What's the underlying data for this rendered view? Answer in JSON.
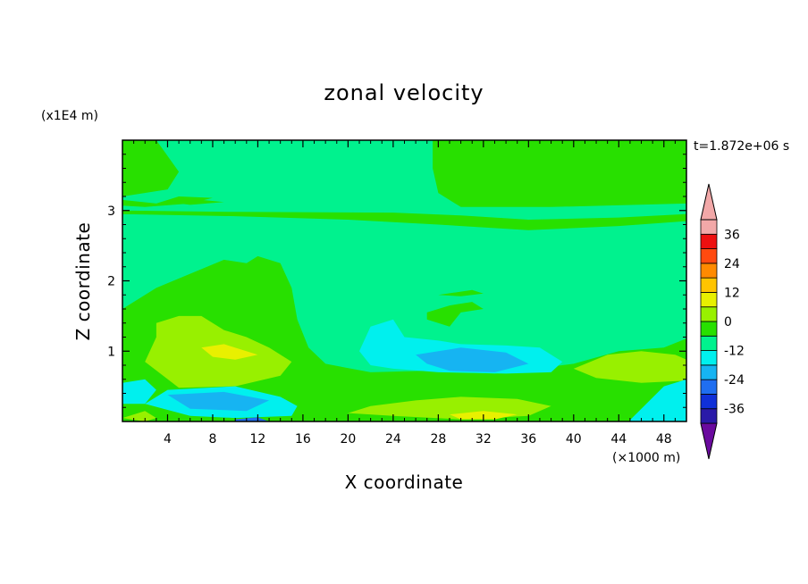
{
  "chart_data": {
    "type": "heatmap",
    "title": "zonal velocity",
    "xlabel": "X coordinate",
    "ylabel": "Z coordinate",
    "x_scale_label": "(×1000 m)",
    "y_scale_label": "(x1E4 m)",
    "time_label": "t=1.872e+06 s",
    "xlim": [
      0,
      50
    ],
    "ylim": [
      0,
      4
    ],
    "x_ticks": [
      4,
      8,
      12,
      16,
      20,
      24,
      28,
      32,
      36,
      40,
      44,
      48
    ],
    "x_tick_labels": [
      "4",
      "8",
      "12",
      "16",
      "20",
      "24",
      "28",
      "32",
      "36",
      "40",
      "44",
      "48"
    ],
    "y_ticks": [
      1,
      2,
      3
    ],
    "y_tick_labels": [
      "1",
      "2",
      "3"
    ],
    "colorbar": {
      "levels": [
        -42,
        -36,
        -30,
        -24,
        -18,
        -12,
        -6,
        0,
        6,
        12,
        18,
        24,
        30,
        36,
        42
      ],
      "tick_values": [
        36,
        24,
        12,
        0,
        -12,
        -24,
        -36
      ],
      "tick_labels": [
        "36",
        "24",
        "12",
        "0",
        "-12",
        "-24",
        "-36"
      ],
      "colors": [
        "#6a0a9e",
        "#2a1aa8",
        "#1030d8",
        "#1f6ef0",
        "#16b4f2",
        "#00f0ee",
        "#00f28e",
        "#28e000",
        "#98f000",
        "#e8f000",
        "#ffc400",
        "#ff8a00",
        "#ff4a10",
        "#ee1010",
        "#f2a8a8"
      ]
    },
    "background_color": "#00f28e",
    "regions": [
      {
        "level": 0,
        "polygon": [
          [
            0,
            4
          ],
          [
            3,
            4
          ],
          [
            5,
            3.55
          ],
          [
            4,
            3.3
          ],
          [
            0,
            3.2
          ]
        ]
      },
      {
        "level": 0,
        "polygon": [
          [
            27.5,
            4
          ],
          [
            50,
            4
          ],
          [
            50,
            3.1
          ],
          [
            38,
            3.05
          ],
          [
            30,
            3.05
          ],
          [
            28,
            3.25
          ],
          [
            27.5,
            3.6
          ]
        ]
      },
      {
        "level": 0,
        "polygon": [
          [
            0,
            3.0
          ],
          [
            10,
            2.98
          ],
          [
            24,
            2.97
          ],
          [
            30,
            2.93
          ],
          [
            36,
            2.87
          ],
          [
            44,
            2.9
          ],
          [
            50,
            2.95
          ],
          [
            50,
            2.85
          ],
          [
            44,
            2.78
          ],
          [
            36,
            2.72
          ],
          [
            28,
            2.8
          ],
          [
            20,
            2.87
          ],
          [
            10,
            2.92
          ],
          [
            0,
            2.95
          ]
        ]
      },
      {
        "level": 0,
        "polygon": [
          [
            0,
            3.15
          ],
          [
            3,
            3.1
          ],
          [
            5,
            3.2
          ],
          [
            8,
            3.18
          ],
          [
            6,
            3.1
          ],
          [
            2,
            3.05
          ],
          [
            0,
            3.07
          ]
        ]
      },
      {
        "level": 0,
        "polygon": [
          [
            4,
            3.12
          ],
          [
            7,
            3.15
          ],
          [
            9,
            3.12
          ],
          [
            6,
            3.08
          ]
        ]
      },
      {
        "level": 0,
        "polygon": [
          [
            0,
            1.6
          ],
          [
            3,
            1.9
          ],
          [
            6,
            2.1
          ],
          [
            9,
            2.3
          ],
          [
            11,
            2.25
          ],
          [
            12,
            2.35
          ],
          [
            14,
            2.25
          ],
          [
            15,
            1.9
          ],
          [
            15.5,
            1.45
          ],
          [
            16.5,
            1.05
          ],
          [
            18,
            0.82
          ],
          [
            22,
            0.7
          ],
          [
            27,
            0.72
          ],
          [
            33,
            0.68
          ],
          [
            40,
            0.82
          ],
          [
            44,
            1.0
          ],
          [
            48,
            1.05
          ],
          [
            50,
            1.18
          ],
          [
            50,
            0
          ],
          [
            0,
            0
          ]
        ]
      },
      {
        "level": 0,
        "polygon": [
          [
            27,
            1.55
          ],
          [
            29,
            1.65
          ],
          [
            31,
            1.7
          ],
          [
            32,
            1.6
          ],
          [
            30,
            1.55
          ],
          [
            29,
            1.35
          ],
          [
            27,
            1.45
          ]
        ]
      },
      {
        "level": 0,
        "polygon": [
          [
            28,
            1.8
          ],
          [
            31,
            1.87
          ],
          [
            32,
            1.82
          ],
          [
            30,
            1.78
          ]
        ]
      },
      {
        "level": 6,
        "polygon": [
          [
            2,
            0.85
          ],
          [
            3,
            1.2
          ],
          [
            3,
            1.4
          ],
          [
            5,
            1.5
          ],
          [
            7,
            1.5
          ],
          [
            9,
            1.3
          ],
          [
            11,
            1.2
          ],
          [
            13,
            1.05
          ],
          [
            15,
            0.85
          ],
          [
            14,
            0.65
          ],
          [
            10,
            0.5
          ],
          [
            5,
            0.48
          ]
        ]
      },
      {
        "level": 6,
        "polygon": [
          [
            22,
            0.22
          ],
          [
            26,
            0.3
          ],
          [
            30,
            0.35
          ],
          [
            35,
            0.32
          ],
          [
            38,
            0.22
          ],
          [
            36,
            0.08
          ],
          [
            30,
            0.03
          ],
          [
            24,
            0.08
          ],
          [
            20,
            0.12
          ]
        ]
      },
      {
        "level": 6,
        "polygon": [
          [
            40,
            0.75
          ],
          [
            43,
            0.95
          ],
          [
            46,
            1.0
          ],
          [
            49,
            0.95
          ],
          [
            50,
            0.88
          ],
          [
            50,
            0.58
          ],
          [
            46,
            0.55
          ],
          [
            42,
            0.62
          ]
        ]
      },
      {
        "level": 6,
        "polygon": [
          [
            0,
            0.05
          ],
          [
            2,
            0.15
          ],
          [
            3,
            0.05
          ],
          [
            2,
            0
          ]
        ]
      },
      {
        "level": 12,
        "polygon": [
          [
            7,
            1.05
          ],
          [
            9,
            1.1
          ],
          [
            12,
            0.95
          ],
          [
            10,
            0.88
          ],
          [
            8,
            0.92
          ]
        ]
      },
      {
        "level": 12,
        "polygon": [
          [
            29,
            0.1
          ],
          [
            32,
            0.15
          ],
          [
            35,
            0.1
          ],
          [
            33,
            0.03
          ],
          [
            30,
            0.03
          ]
        ]
      },
      {
        "level": -6,
        "polygon": [
          [
            21,
            1.0
          ],
          [
            22,
            1.35
          ],
          [
            24,
            1.45
          ],
          [
            25,
            1.2
          ],
          [
            28,
            1.15
          ],
          [
            30,
            1.1
          ],
          [
            34,
            1.08
          ],
          [
            37,
            1.05
          ],
          [
            39,
            0.85
          ],
          [
            38,
            0.7
          ],
          [
            34,
            0.68
          ],
          [
            28,
            0.7
          ],
          [
            24,
            0.75
          ],
          [
            22,
            0.8
          ]
        ]
      },
      {
        "level": -6,
        "polygon": [
          [
            0,
            0.55
          ],
          [
            2,
            0.6
          ],
          [
            3,
            0.45
          ],
          [
            2,
            0.25
          ],
          [
            0,
            0.25
          ]
        ]
      },
      {
        "level": -6,
        "polygon": [
          [
            2,
            0.25
          ],
          [
            4,
            0.45
          ],
          [
            10,
            0.5
          ],
          [
            14,
            0.35
          ],
          [
            15.5,
            0.22
          ],
          [
            15,
            0.08
          ],
          [
            10,
            0.05
          ],
          [
            6,
            0.08
          ]
        ]
      },
      {
        "level": -6,
        "polygon": [
          [
            45,
            0.02
          ],
          [
            48,
            0.5
          ],
          [
            50,
            0.6
          ],
          [
            50,
            0
          ],
          [
            45,
            0
          ]
        ]
      },
      {
        "level": -12,
        "polygon": [
          [
            26,
            0.95
          ],
          [
            30,
            1.05
          ],
          [
            34,
            0.98
          ],
          [
            36,
            0.82
          ],
          [
            33,
            0.7
          ],
          [
            29,
            0.72
          ],
          [
            27,
            0.82
          ]
        ]
      },
      {
        "level": -12,
        "polygon": [
          [
            4,
            0.38
          ],
          [
            9,
            0.42
          ],
          [
            13,
            0.3
          ],
          [
            11,
            0.15
          ],
          [
            6,
            0.18
          ]
        ]
      },
      {
        "level": -18,
        "polygon": [
          [
            10,
            0.03
          ],
          [
            12,
            0.06
          ],
          [
            13,
            0
          ],
          [
            10,
            0
          ]
        ]
      }
    ]
  }
}
